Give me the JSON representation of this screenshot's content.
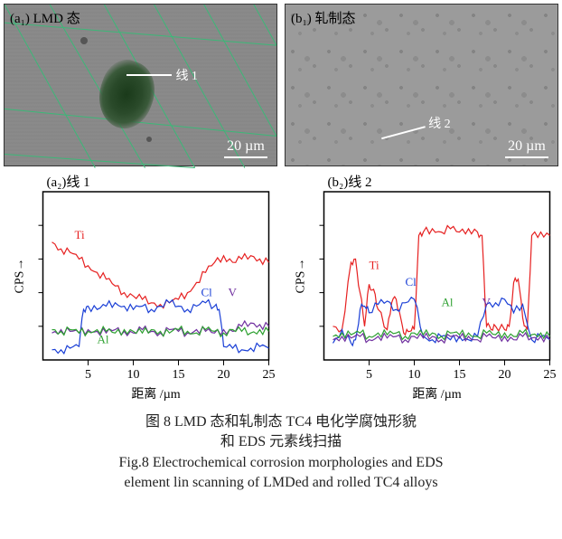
{
  "panel_a1": {
    "label": "(a₁) LMD 态",
    "line_marker_text": "线 1",
    "scale_text": "20 µm"
  },
  "panel_b1": {
    "label": "(b₁) 轧制态",
    "line_marker_text": "线 2",
    "scale_text": "20 µm"
  },
  "chart_a2": {
    "panel_label": "(a₂)线 1",
    "type": "line",
    "xlabel": "距离 /µm",
    "ylabel": "CPS→",
    "xlim": [
      0,
      25
    ],
    "xticks": [
      5,
      10,
      15,
      20,
      25
    ],
    "ylim": [
      0,
      100
    ],
    "text_color": "#000000",
    "background_color": "#ffffff",
    "axis_fontsize": 14,
    "label_fontsize": 14,
    "line_width": 1.2,
    "series": {
      "Ti": {
        "color": "#e62020",
        "label": "Ti",
        "label_pos": [
          3.5,
          72
        ],
        "points": [
          [
            1,
            70
          ],
          [
            2,
            66
          ],
          [
            3,
            64
          ],
          [
            4,
            60
          ],
          [
            5,
            56
          ],
          [
            6,
            52
          ],
          [
            7,
            48
          ],
          [
            8,
            44
          ],
          [
            9,
            40
          ],
          [
            10,
            38
          ],
          [
            11,
            36
          ],
          [
            12,
            34
          ],
          [
            13,
            33
          ],
          [
            14,
            34
          ],
          [
            15,
            36
          ],
          [
            16,
            40
          ],
          [
            17,
            46
          ],
          [
            18,
            52
          ],
          [
            19,
            58
          ],
          [
            20,
            62
          ],
          [
            21,
            58
          ],
          [
            22,
            60
          ],
          [
            23,
            62
          ],
          [
            24,
            60
          ],
          [
            25,
            58
          ]
        ]
      },
      "Cl": {
        "color": "#1a3fd6",
        "label": "Cl",
        "label_pos": [
          17.5,
          38
        ],
        "points": [
          [
            1,
            6
          ],
          [
            2,
            6
          ],
          [
            3,
            7
          ],
          [
            4,
            8
          ],
          [
            4.5,
            30
          ],
          [
            5,
            32
          ],
          [
            6,
            30
          ],
          [
            7,
            32
          ],
          [
            8,
            34
          ],
          [
            9,
            32
          ],
          [
            10,
            30
          ],
          [
            11,
            32
          ],
          [
            12,
            30
          ],
          [
            13,
            32
          ],
          [
            14,
            34
          ],
          [
            15,
            32
          ],
          [
            16,
            30
          ],
          [
            17,
            32
          ],
          [
            18,
            34
          ],
          [
            19,
            32
          ],
          [
            19.5,
            30
          ],
          [
            20,
            8
          ],
          [
            21,
            7
          ],
          [
            22,
            6
          ],
          [
            23,
            7
          ],
          [
            24,
            8
          ],
          [
            25,
            7
          ]
        ]
      },
      "V": {
        "color": "#7030a0",
        "label": "V",
        "label_pos": [
          20.5,
          38
        ],
        "points": [
          [
            1,
            16
          ],
          [
            2,
            18
          ],
          [
            3,
            17
          ],
          [
            4,
            16
          ],
          [
            5,
            18
          ],
          [
            6,
            17
          ],
          [
            7,
            16
          ],
          [
            8,
            18
          ],
          [
            9,
            17
          ],
          [
            10,
            16
          ],
          [
            11,
            18
          ],
          [
            12,
            17
          ],
          [
            13,
            16
          ],
          [
            14,
            18
          ],
          [
            15,
            17
          ],
          [
            16,
            16
          ],
          [
            17,
            18
          ],
          [
            18,
            17
          ],
          [
            19,
            16
          ],
          [
            20,
            18
          ],
          [
            21,
            17
          ],
          [
            22,
            20
          ],
          [
            23,
            22
          ],
          [
            24,
            21
          ],
          [
            25,
            20
          ]
        ]
      },
      "Al": {
        "color": "#2da030",
        "label": "Al",
        "label_pos": [
          6,
          10
        ],
        "points": [
          [
            1,
            18
          ],
          [
            2,
            17
          ],
          [
            3,
            18
          ],
          [
            4,
            16
          ],
          [
            5,
            17
          ],
          [
            6,
            18
          ],
          [
            7,
            17
          ],
          [
            8,
            16
          ],
          [
            9,
            18
          ],
          [
            10,
            17
          ],
          [
            11,
            16
          ],
          [
            12,
            18
          ],
          [
            13,
            17
          ],
          [
            14,
            16
          ],
          [
            15,
            18
          ],
          [
            16,
            17
          ],
          [
            17,
            16
          ],
          [
            18,
            18
          ],
          [
            19,
            17
          ],
          [
            20,
            16
          ],
          [
            21,
            18
          ],
          [
            22,
            17
          ],
          [
            23,
            16
          ],
          [
            24,
            18
          ],
          [
            25,
            17
          ]
        ]
      }
    }
  },
  "chart_b2": {
    "panel_label": "(b₂)线 2",
    "type": "line",
    "xlabel": "距离 /µm",
    "ylabel": "CPS→",
    "xlim": [
      0,
      25
    ],
    "xticks": [
      5,
      10,
      15,
      20,
      25
    ],
    "ylim": [
      0,
      100
    ],
    "text_color": "#000000",
    "background_color": "#ffffff",
    "axis_fontsize": 14,
    "label_fontsize": 14,
    "line_width": 1.2,
    "series": {
      "Ti": {
        "color": "#e62020",
        "label": "Ti",
        "label_pos": [
          5,
          54
        ],
        "points": [
          [
            1,
            20
          ],
          [
            2,
            18
          ],
          [
            3,
            58
          ],
          [
            3.5,
            60
          ],
          [
            4,
            40
          ],
          [
            4.5,
            20
          ],
          [
            5,
            45
          ],
          [
            5.5,
            42
          ],
          [
            6,
            30
          ],
          [
            7,
            18
          ],
          [
            7.5,
            34
          ],
          [
            8,
            36
          ],
          [
            8.5,
            25
          ],
          [
            9,
            15
          ],
          [
            9.5,
            17
          ],
          [
            10,
            18
          ],
          [
            10.5,
            74
          ],
          [
            11,
            76
          ],
          [
            12,
            78
          ],
          [
            13,
            76
          ],
          [
            14,
            78
          ],
          [
            15,
            76
          ],
          [
            16,
            78
          ],
          [
            17,
            76
          ],
          [
            17.5,
            74
          ],
          [
            18,
            20
          ],
          [
            18.5,
            18
          ],
          [
            19,
            20
          ],
          [
            20,
            18
          ],
          [
            20.5,
            20
          ],
          [
            21,
            46
          ],
          [
            21.5,
            48
          ],
          [
            22,
            25
          ],
          [
            22.5,
            18
          ],
          [
            23,
            74
          ],
          [
            24,
            76
          ],
          [
            25,
            74
          ]
        ]
      },
      "Cl": {
        "color": "#1a3fd6",
        "label": "Cl",
        "label_pos": [
          9,
          44
        ],
        "points": [
          [
            1,
            10
          ],
          [
            2,
            18
          ],
          [
            3,
            10
          ],
          [
            3.5,
            12
          ],
          [
            4,
            30
          ],
          [
            4.5,
            32
          ],
          [
            5,
            28
          ],
          [
            6,
            33
          ],
          [
            7,
            35
          ],
          [
            8,
            30
          ],
          [
            9,
            34
          ],
          [
            10,
            36
          ],
          [
            11,
            14
          ],
          [
            12,
            12
          ],
          [
            13,
            14
          ],
          [
            14,
            12
          ],
          [
            15,
            14
          ],
          [
            16,
            12
          ],
          [
            17,
            14
          ],
          [
            18,
            33
          ],
          [
            19,
            34
          ],
          [
            20,
            36
          ],
          [
            21,
            28
          ],
          [
            22,
            33
          ],
          [
            23,
            12
          ],
          [
            24,
            14
          ],
          [
            25,
            12
          ]
        ]
      },
      "Al": {
        "color": "#2da030",
        "label": "Al",
        "label_pos": [
          13,
          32
        ],
        "points": [
          [
            1,
            14
          ],
          [
            2,
            16
          ],
          [
            3,
            15
          ],
          [
            4,
            16
          ],
          [
            5,
            14
          ],
          [
            6,
            16
          ],
          [
            7,
            15
          ],
          [
            8,
            16
          ],
          [
            9,
            14
          ],
          [
            10,
            16
          ],
          [
            11,
            15
          ],
          [
            12,
            16
          ],
          [
            13,
            14
          ],
          [
            14,
            16
          ],
          [
            15,
            15
          ],
          [
            16,
            16
          ],
          [
            17,
            14
          ],
          [
            18,
            16
          ],
          [
            19,
            15
          ],
          [
            20,
            16
          ],
          [
            21,
            14
          ],
          [
            22,
            16
          ],
          [
            23,
            15
          ],
          [
            24,
            16
          ],
          [
            25,
            14
          ]
        ]
      },
      "V": {
        "color": "#7030a0",
        "label": "V",
        "label_pos": [
          17.5,
          32
        ],
        "points": [
          [
            1,
            12
          ],
          [
            2,
            14
          ],
          [
            3,
            13
          ],
          [
            4,
            14
          ],
          [
            5,
            12
          ],
          [
            6,
            14
          ],
          [
            7,
            13
          ],
          [
            8,
            14
          ],
          [
            9,
            12
          ],
          [
            10,
            14
          ],
          [
            11,
            13
          ],
          [
            12,
            14
          ],
          [
            13,
            12
          ],
          [
            14,
            14
          ],
          [
            15,
            13
          ],
          [
            16,
            14
          ],
          [
            17,
            12
          ],
          [
            18,
            14
          ],
          [
            19,
            13
          ],
          [
            20,
            14
          ],
          [
            21,
            12
          ],
          [
            22,
            14
          ],
          [
            23,
            13
          ],
          [
            24,
            14
          ],
          [
            25,
            12
          ]
        ]
      }
    }
  },
  "captions": {
    "cn_line1": "图 8  LMD 态和轧制态 TC4 电化学腐蚀形貌",
    "cn_line2": "和 EDS 元素线扫描",
    "en_line1": "Fig.8  Electrochemical corrosion morphologies and EDS",
    "en_line2": "element lin scanning of LMDed and rolled TC4 alloys"
  },
  "colors": {
    "green_grid": "#3cb878"
  }
}
